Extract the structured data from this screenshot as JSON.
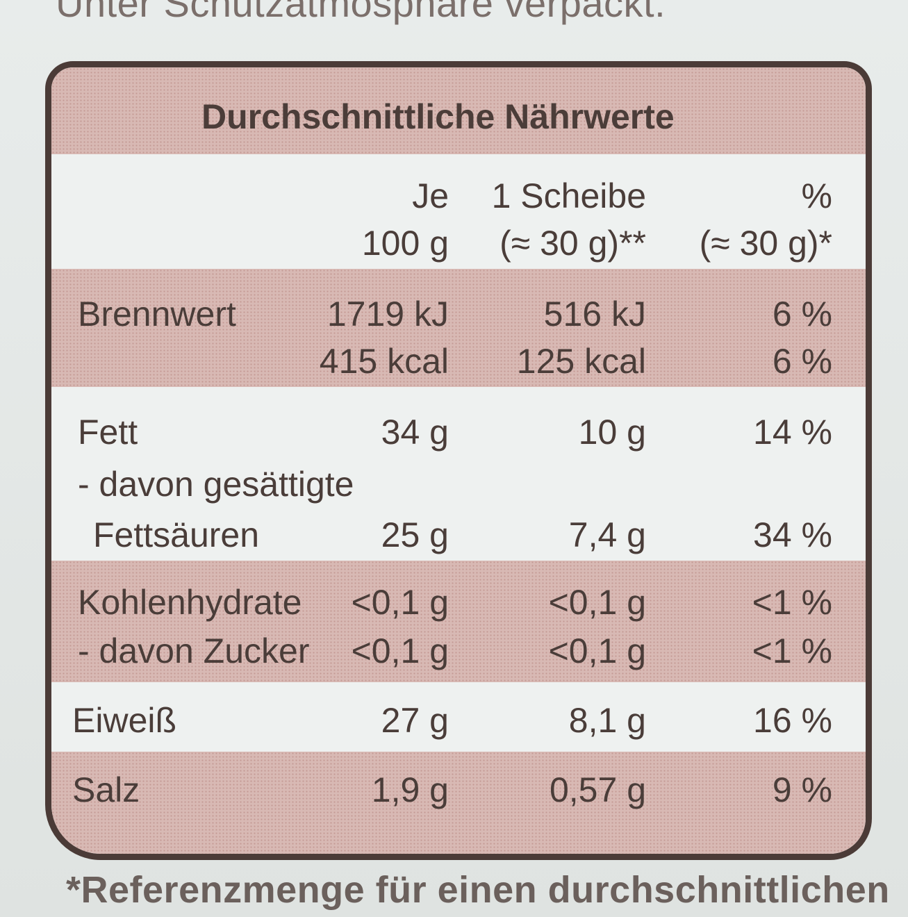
{
  "top_text": "Unter Schutzatmosphäre verpackt.",
  "bottom_text": "*Referenzmenge für einen durchschnittlichen",
  "table": {
    "title": "Durchschnittliche Nährwerte",
    "header": {
      "col1_line1": "Je",
      "col1_line2": "100 g",
      "col2_line1": "1 Scheibe",
      "col2_line2": "(≈ 30 g)**",
      "col3_line1": "%",
      "col3_line2": "(≈ 30 g)*"
    },
    "rows": [
      {
        "label": "Brennwert",
        "v1": "1719 kJ",
        "v2": "516 kJ",
        "v3": "6 %"
      },
      {
        "label": "",
        "v1": "415 kcal",
        "v2": "125 kcal",
        "v3": "6 %"
      },
      {
        "label": "Fett",
        "v1": "34 g",
        "v2": "10 g",
        "v3": "14 %"
      },
      {
        "label": "- davon gesättigte",
        "v1": "",
        "v2": "",
        "v3": ""
      },
      {
        "label": "Fettsäuren",
        "v1": "25 g",
        "v2": "7,4 g",
        "v3": "34 %"
      },
      {
        "label": "Kohlenhydrate",
        "v1": "<0,1 g",
        "v2": "<0,1 g",
        "v3": "<1 %"
      },
      {
        "label": "- davon Zucker",
        "v1": "<0,1 g",
        "v2": "<0,1 g",
        "v3": "<1 %"
      },
      {
        "label": "Eiweiß",
        "v1": "27 g",
        "v2": "8,1 g",
        "v3": "16 %"
      },
      {
        "label": "Salz",
        "v1": "1,9 g",
        "v2": "0,57 g",
        "v3": "9 %"
      }
    ]
  },
  "colors": {
    "border": "#4b3b37",
    "band": "#d8b9b4",
    "text": "#4a3d39",
    "background": "#eef1f0"
  }
}
